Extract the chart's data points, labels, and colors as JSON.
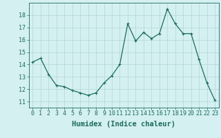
{
  "x": [
    0,
    1,
    2,
    3,
    4,
    5,
    6,
    7,
    8,
    9,
    10,
    11,
    12,
    13,
    14,
    15,
    16,
    17,
    18,
    19,
    20,
    21,
    22,
    23
  ],
  "y": [
    14.2,
    14.5,
    13.2,
    12.3,
    12.2,
    11.9,
    11.7,
    11.5,
    11.7,
    12.5,
    13.1,
    14.0,
    17.3,
    15.9,
    16.6,
    16.1,
    16.5,
    18.5,
    17.3,
    16.5,
    16.5,
    14.4,
    12.5,
    11.1
  ],
  "line_color": "#1a6b5a",
  "marker": "+",
  "marker_size": 3,
  "marker_linewidth": 0.8,
  "line_width": 0.9,
  "bg_color": "#d4f0f0",
  "grid_color": "#b8dada",
  "xlabel": "Humidex (Indice chaleur)",
  "ylim": [
    10.5,
    19.0
  ],
  "xlim": [
    -0.5,
    23.5
  ],
  "yticks": [
    11,
    12,
    13,
    14,
    15,
    16,
    17,
    18
  ],
  "xticks": [
    0,
    1,
    2,
    3,
    4,
    5,
    6,
    7,
    8,
    9,
    10,
    11,
    12,
    13,
    14,
    15,
    16,
    17,
    18,
    19,
    20,
    21,
    22,
    23
  ],
  "title_color": "#1a6b5a",
  "tick_fontsize": 6,
  "xlabel_fontsize": 7.5
}
